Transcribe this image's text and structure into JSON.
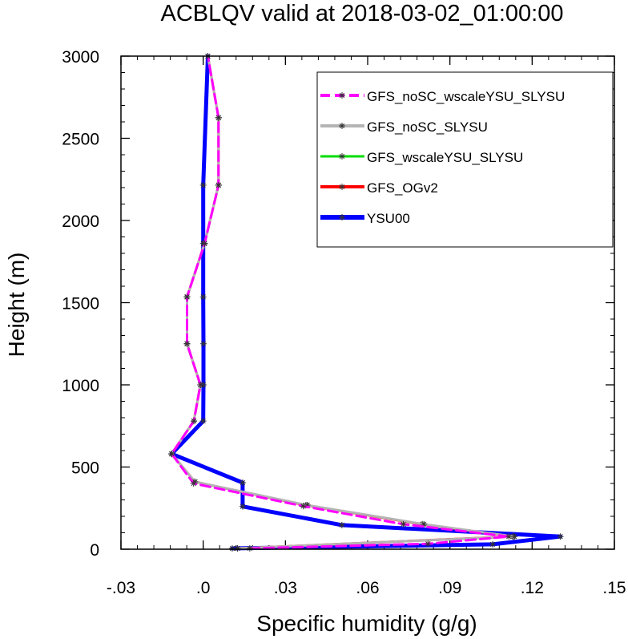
{
  "chart_data": {
    "type": "line",
    "title": "ACBLQV valid at 2018-03-02_01:00:00",
    "xlabel": "Specific humidity (g/g)",
    "ylabel": "Height (m)",
    "xlim": [
      -0.03,
      0.15
    ],
    "ylim": [
      0,
      3000
    ],
    "x_ticks": [
      -0.03,
      0.0,
      0.03,
      0.06,
      0.09,
      0.12,
      0.15
    ],
    "x_tick_labels": [
      "-.03",
      ".0",
      ".03",
      ".06",
      ".09",
      ".12",
      ".15"
    ],
    "y_ticks": [
      0,
      500,
      1000,
      1500,
      2000,
      2500,
      3000
    ],
    "y_tick_labels": [
      "0",
      "500",
      "1000",
      "1500",
      "2000",
      "2500",
      "3000"
    ],
    "grid": false,
    "legend_position": "top-right",
    "series": [
      {
        "name": "YSU00",
        "color": "#0000ff",
        "dash": "solid",
        "width": 5,
        "x": [
          0.0106,
          0.1056,
          0.1303,
          0.0506,
          0.0144,
          0.0144,
          -0.0115,
          0.0,
          0.0001,
          0.0001,
          0.0,
          0.0,
          0.0,
          0.0017
        ],
        "y": [
          5,
          30,
          77,
          147,
          260,
          405,
          580,
          780,
          1000,
          1250,
          1535,
          1860,
          2215,
          3000
        ]
      },
      {
        "name": "GFS_OGv2",
        "color": "#ff0000",
        "dash": "solid",
        "width": 3,
        "x": [
          0.0125,
          0.113,
          0.0799,
          0.0375,
          -0.003,
          -0.0115,
          -0.0034,
          -0.001,
          -0.0059,
          -0.0059,
          0.0005,
          0.0056,
          0.0056,
          0.0017
        ],
        "y": [
          5,
          77,
          152,
          268,
          410,
          580,
          780,
          1000,
          1250,
          1535,
          1860,
          2215,
          2625,
          3000
        ]
      },
      {
        "name": "GFS_wscaleYSU_SLYSU",
        "color": "#00dd00",
        "dash": "solid",
        "width": 2,
        "x": [
          0.0125,
          0.113,
          0.0799,
          0.0375,
          -0.003,
          -0.0115,
          -0.0034,
          -0.001,
          -0.0059,
          -0.0059,
          0.0005,
          0.0056,
          0.0056,
          0.0017
        ],
        "y": [
          5,
          77,
          152,
          268,
          410,
          580,
          780,
          1000,
          1250,
          1535,
          1860,
          2215,
          2625,
          3000
        ]
      },
      {
        "name": "GFS_noSC_SLYSU",
        "color": "#b4b4b4",
        "dash": "solid",
        "width": 3,
        "x": [
          0.0125,
          0.1135,
          0.0805,
          0.038,
          -0.003,
          -0.0115,
          -0.0034,
          -0.001,
          -0.0059,
          -0.0059,
          0.0005,
          0.0056,
          0.0056,
          0.0017
        ],
        "y": [
          5,
          77,
          152,
          268,
          410,
          580,
          780,
          1000,
          1250,
          1535,
          1860,
          2215,
          2625,
          3000
        ]
      },
      {
        "name": "GFS_noSC_wscaleYSU_SLYSU",
        "color": "#ff00ff",
        "dash": "dashed",
        "width": 3,
        "x": [
          0.017,
          0.082,
          0.1115,
          0.073,
          0.0365,
          -0.0035,
          -0.0115,
          -0.0034,
          -0.001,
          -0.0059,
          -0.0059,
          0.0005,
          0.0056,
          0.0056,
          0.0017
        ],
        "y": [
          5,
          33,
          77,
          152,
          262,
          400,
          580,
          780,
          1000,
          1250,
          1535,
          1860,
          2215,
          2625,
          3000
        ]
      }
    ],
    "legend_order": [
      "GFS_noSC_wscaleYSU_SLYSU",
      "GFS_noSC_SLYSU",
      "GFS_wscaleYSU_SLYSU",
      "GFS_OGv2",
      "YSU00"
    ]
  }
}
